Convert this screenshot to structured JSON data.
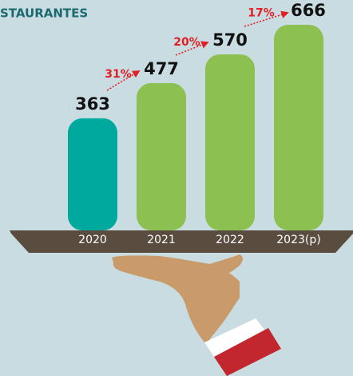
{
  "chart_data": {
    "type": "bar",
    "title": "STAURANTES",
    "categories": [
      "2020",
      "2021",
      "2022",
      "2023(p)"
    ],
    "values": [
      363,
      477,
      570,
      666
    ],
    "colors": [
      "#00a99d",
      "#8cc152",
      "#8cc152",
      "#8cc152"
    ],
    "annotations": [
      "31%",
      "20%",
      "17%"
    ]
  }
}
